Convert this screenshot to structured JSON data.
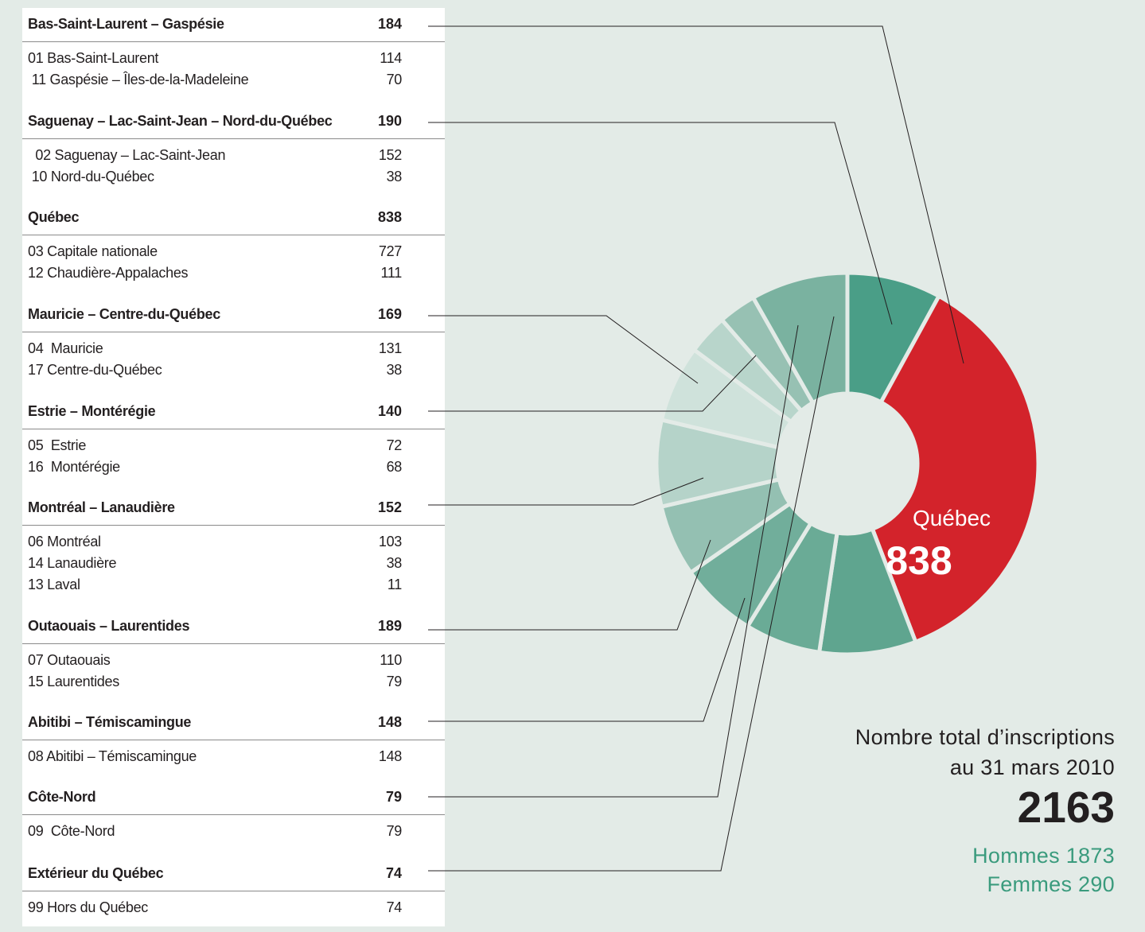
{
  "chart_data": {
    "type": "pie",
    "groups": [
      {
        "name": "Bas-Saint-Laurent – Gaspésie",
        "total": "184",
        "rows": [
          {
            "label": "01 Bas-Saint-Laurent",
            "value": "114"
          },
          {
            "label": " 11 Gaspésie – Îles-de-la-Madeleine",
            "value": "70"
          }
        ]
      },
      {
        "name": "Saguenay – Lac-Saint-Jean – Nord-du-Québec",
        "total": "190",
        "rows": [
          {
            "label": "  02 Saguenay – Lac-Saint-Jean",
            "value": "152"
          },
          {
            "label": " 10 Nord-du-Québec",
            "value": "38"
          }
        ]
      },
      {
        "name": "Québec",
        "total": "838",
        "rows": [
          {
            "label": "03 Capitale nationale",
            "value": "727"
          },
          {
            "label": "12 Chaudière-Appalaches",
            "value": "111"
          }
        ]
      },
      {
        "name": "Mauricie – Centre-du-Québec",
        "total": "169",
        "rows": [
          {
            "label": "04  Mauricie",
            "value": "131"
          },
          {
            "label": "17 Centre-du-Québec",
            "value": "38"
          }
        ]
      },
      {
        "name": "Estrie – Montérégie",
        "total": "140",
        "rows": [
          {
            "label": "05  Estrie",
            "value": "72"
          },
          {
            "label": "16  Montérégie",
            "value": "68"
          }
        ]
      },
      {
        "name": "Montréal – Lanaudière",
        "total": "152",
        "rows": [
          {
            "label": "06 Montréal",
            "value": "103"
          },
          {
            "label": "14 Lanaudière",
            "value": "38"
          },
          {
            "label": "13 Laval",
            "value": "11"
          }
        ]
      },
      {
        "name": "Outaouais – Laurentides",
        "total": "189",
        "rows": [
          {
            "label": "07 Outaouais",
            "value": "110"
          },
          {
            "label": "15 Laurentides",
            "value": "79"
          }
        ]
      },
      {
        "name": "Abitibi – Témiscamingue",
        "total": "148",
        "rows": [
          {
            "label": "08 Abitibi – Témiscamingue",
            "value": "148"
          }
        ]
      },
      {
        "name": "Côte-Nord",
        "total": "79",
        "rows": [
          {
            "label": "09  Côte-Nord",
            "value": "79"
          }
        ]
      },
      {
        "name": "Extérieur du Québec",
        "total": "74",
        "rows": [
          {
            "label": "99 Hors du Québec",
            "value": "74"
          }
        ]
      }
    ],
    "slices": [
      {
        "group": "Bas-Saint-Laurent – Gaspésie",
        "value": 184,
        "color": "#4a9e87"
      },
      {
        "group": "Québec",
        "value": 838,
        "color": "#d3232b"
      },
      {
        "group": "Outaouais – Laurentides",
        "value": 189,
        "color": "#5fa58f"
      },
      {
        "group": "Abitibi – Témiscamingue",
        "value": 148,
        "color": "#6aab96"
      },
      {
        "group": "Montréal – Lanaudière",
        "value": 152,
        "color": "#71ae9b"
      },
      {
        "group": "Estrie – Montérégie",
        "value": 140,
        "color": "#94c0b2"
      },
      {
        "group": "Mauricie – Centre-du-Québec",
        "value": 169,
        "color": "#b5d3c9"
      },
      {
        "group": "Extérieur du Québec (inner)",
        "value": 150,
        "color": "#cfe2db"
      },
      {
        "group": "Côte-Nord",
        "value": 79,
        "color": "#b8d5cb"
      },
      {
        "group": "Extérieur du Québec",
        "value": 74,
        "color": "#97c1b3"
      },
      {
        "group": "Saguenay – Lac-Saint-Jean – Nord-du-Québec",
        "value": 190,
        "color": "#7ab2a0"
      }
    ],
    "highlight": {
      "label": "Québec",
      "value": "838"
    },
    "totals": {
      "label_line1": "Nombre total d’inscriptions",
      "label_line2": "au 31 mars 2010",
      "total": "2163",
      "hommes": "Hommes 1873",
      "femmes": "Femmes 290"
    }
  },
  "colors": {
    "background": "#e3ebe7",
    "table": "#ffffff",
    "accent_red": "#d3232b",
    "accent_green": "#3a9b7d"
  }
}
